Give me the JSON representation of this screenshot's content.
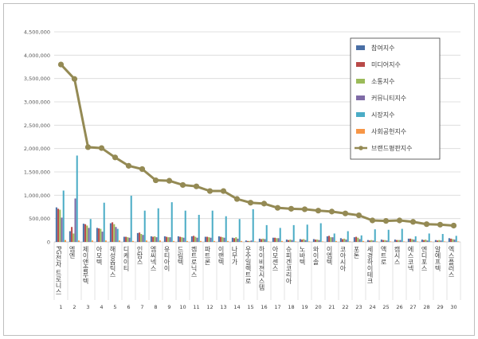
{
  "chart_data": {
    "type": "bar",
    "title": "",
    "xlabel": "",
    "ylabel": "",
    "ylim": [
      0,
      4500000
    ],
    "yticks": [
      0,
      500000,
      1000000,
      1500000,
      2000000,
      2500000,
      3000000,
      3500000,
      4000000,
      4500000
    ],
    "ytick_labels": [
      "0",
      "500,000",
      "1,000,000",
      "1,500,000",
      "2,000,000",
      "2,500,000",
      "3,000,000",
      "3,500,000",
      "4,000,000",
      "4,500,000"
    ],
    "grid": true,
    "legend_position": "top-right",
    "category_numbers": [
      "1",
      "2",
      "3",
      "4",
      "5",
      "6",
      "7",
      "8",
      "9",
      "10",
      "11",
      "12",
      "13",
      "14",
      "15",
      "16",
      "17",
      "18",
      "19",
      "20",
      "21",
      "22",
      "23",
      "24",
      "25",
      "26",
      "27",
      "28",
      "29",
      "30"
    ],
    "categories": [
      "PG전자 트로니스",
      "엠엔",
      "제이앤솔루텍",
      "아모텍",
      "해성옵틱스",
      "디케이티",
      "인탑스",
      "엠씨넥스",
      "유티아이",
      "드림텍",
      "켐트로닉스",
      "파트론",
      "이랜텍",
      "나무가",
      "우주일렉트로",
      "하이비젼시스템",
      "아모센스",
      "슈피겐코리아",
      "노바텍",
      "와이솔",
      "이엠텍",
      "코아시아",
      "포톤",
      "세경하이테크",
      "액트로",
      "캠시스",
      "에스코넥",
      "엔디포스",
      "알에프텍",
      "엑스플러스"
    ],
    "series": [
      {
        "name": "참여지수",
        "color": "#4a6fa5",
        "type": "bar",
        "values": [
          740000,
          230000,
          390000,
          300000,
          400000,
          110000,
          190000,
          120000,
          120000,
          120000,
          120000,
          110000,
          120000,
          90000,
          30000,
          70000,
          90000,
          50000,
          60000,
          60000,
          120000,
          80000,
          100000,
          40000,
          50000,
          50000,
          70000,
          50000,
          40000,
          80000
        ]
      },
      {
        "name": "미디어지수",
        "color": "#b94a48",
        "type": "bar",
        "values": [
          710000,
          320000,
          380000,
          290000,
          420000,
          110000,
          200000,
          110000,
          110000,
          110000,
          130000,
          110000,
          110000,
          80000,
          20000,
          60000,
          90000,
          40000,
          50000,
          50000,
          130000,
          60000,
          110000,
          30000,
          40000,
          40000,
          70000,
          40000,
          30000,
          70000
        ]
      },
      {
        "name": "소통지수",
        "color": "#9bbb59",
        "type": "bar",
        "values": [
          690000,
          180000,
          350000,
          280000,
          380000,
          100000,
          170000,
          120000,
          100000,
          100000,
          110000,
          100000,
          100000,
          100000,
          20000,
          70000,
          80000,
          50000,
          60000,
          50000,
          100000,
          70000,
          90000,
          40000,
          40000,
          40000,
          60000,
          50000,
          40000,
          60000
        ]
      },
      {
        "name": "커뮤니티지수",
        "color": "#7f6ba6",
        "type": "bar",
        "values": [
          520000,
          930000,
          300000,
          220000,
          320000,
          90000,
          150000,
          100000,
          100000,
          90000,
          90000,
          90000,
          90000,
          70000,
          30000,
          60000,
          80000,
          40000,
          40000,
          40000,
          100000,
          50000,
          60000,
          30000,
          30000,
          40000,
          50000,
          30000,
          30000,
          50000
        ]
      },
      {
        "name": "시장지수",
        "color": "#4bacc6",
        "type": "bar",
        "values": [
          1100000,
          1850000,
          490000,
          840000,
          280000,
          990000,
          670000,
          720000,
          850000,
          670000,
          580000,
          670000,
          550000,
          490000,
          700000,
          360000,
          300000,
          360000,
          370000,
          400000,
          180000,
          230000,
          140000,
          270000,
          260000,
          280000,
          120000,
          180000,
          170000,
          130000
        ]
      },
      {
        "name": "사회공헌지수",
        "color": "#f79646",
        "type": "bar",
        "values": [
          40000,
          30000,
          30000,
          30000,
          30000,
          20000,
          30000,
          30000,
          20000,
          20000,
          20000,
          20000,
          20000,
          20000,
          10000,
          10000,
          20000,
          10000,
          10000,
          10000,
          20000,
          10000,
          20000,
          10000,
          10000,
          10000,
          10000,
          10000,
          10000,
          10000
        ]
      },
      {
        "name": "브랜드평판지수",
        "color": "#948a54",
        "type": "line",
        "values": [
          3800000,
          3490000,
          2030000,
          2010000,
          1810000,
          1630000,
          1560000,
          1320000,
          1310000,
          1220000,
          1190000,
          1090000,
          1090000,
          920000,
          840000,
          820000,
          730000,
          710000,
          700000,
          670000,
          650000,
          610000,
          570000,
          460000,
          450000,
          460000,
          430000,
          380000,
          370000,
          350000
        ]
      }
    ]
  }
}
